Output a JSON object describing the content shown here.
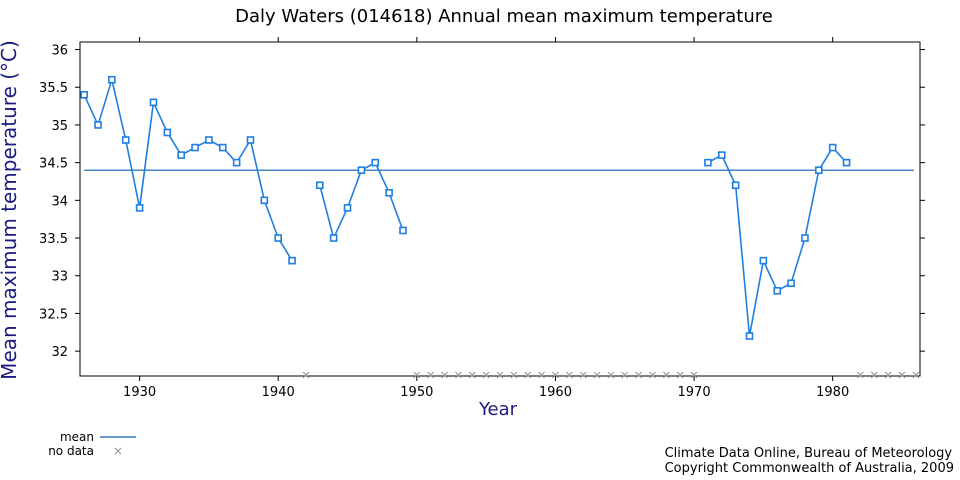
{
  "chart_data": {
    "type": "line",
    "title": "Daly Waters (014618) Annual mean maximum temperature",
    "xlabel": "Year",
    "ylabel": "Mean maximum temperature (°C)",
    "xlim": [
      1925.7,
      1986.3
    ],
    "ylim": [
      31.67,
      36.1
    ],
    "x_ticks": [
      1930,
      1940,
      1950,
      1960,
      1970,
      1980
    ],
    "y_ticks": [
      32,
      32.5,
      33,
      33.5,
      34,
      34.5,
      35,
      35.5,
      36
    ],
    "y_tick_labels": [
      "32",
      "32.5",
      "33",
      "33.5",
      "34",
      "34.5",
      "35",
      "35.5",
      "36"
    ],
    "mean": 34.4,
    "series": [
      {
        "name": "Annual mean maximum temperature",
        "points": [
          [
            1926,
            35.4
          ],
          [
            1927,
            35.0
          ],
          [
            1928,
            35.6
          ],
          [
            1929,
            34.8
          ],
          [
            1930,
            33.9
          ],
          [
            1931,
            35.3
          ],
          [
            1932,
            34.9
          ],
          [
            1933,
            34.6
          ],
          [
            1934,
            34.7
          ],
          [
            1935,
            34.8
          ],
          [
            1936,
            34.7
          ],
          [
            1937,
            34.5
          ],
          [
            1938,
            34.8
          ],
          [
            1939,
            34.0
          ],
          [
            1940,
            33.5
          ],
          [
            1941,
            33.2
          ],
          [
            1942,
            null
          ],
          [
            1943,
            34.2
          ],
          [
            1944,
            33.5
          ],
          [
            1945,
            33.9
          ],
          [
            1946,
            34.4
          ],
          [
            1947,
            34.5
          ],
          [
            1948,
            34.1
          ],
          [
            1949,
            33.6
          ],
          [
            1971,
            34.5
          ],
          [
            1972,
            34.6
          ],
          [
            1973,
            34.2
          ],
          [
            1974,
            32.2
          ],
          [
            1975,
            33.2
          ],
          [
            1976,
            32.8
          ],
          [
            1977,
            32.9
          ],
          [
            1978,
            33.5
          ],
          [
            1979,
            34.4
          ],
          [
            1980,
            34.7
          ],
          [
            1981,
            34.5
          ]
        ]
      }
    ],
    "no_data_years": [
      1942,
      1950,
      1951,
      1952,
      1953,
      1954,
      1955,
      1956,
      1957,
      1958,
      1959,
      1960,
      1961,
      1962,
      1963,
      1964,
      1965,
      1966,
      1967,
      1968,
      1969,
      1970,
      1982,
      1983,
      1984,
      1985,
      1986
    ],
    "legend": {
      "mean": "mean",
      "no_data": "no data",
      "placement": "bottom-left"
    },
    "grid": false,
    "colors": {
      "series": "#1f7fe0",
      "mean": "#0a5fa8",
      "no_data": "#909090",
      "axis_label": "#1a1a80"
    }
  },
  "credits": {
    "line1": "Climate Data Online, Bureau of Meteorology",
    "line2": "Copyright Commonwealth of Australia, 2009"
  }
}
